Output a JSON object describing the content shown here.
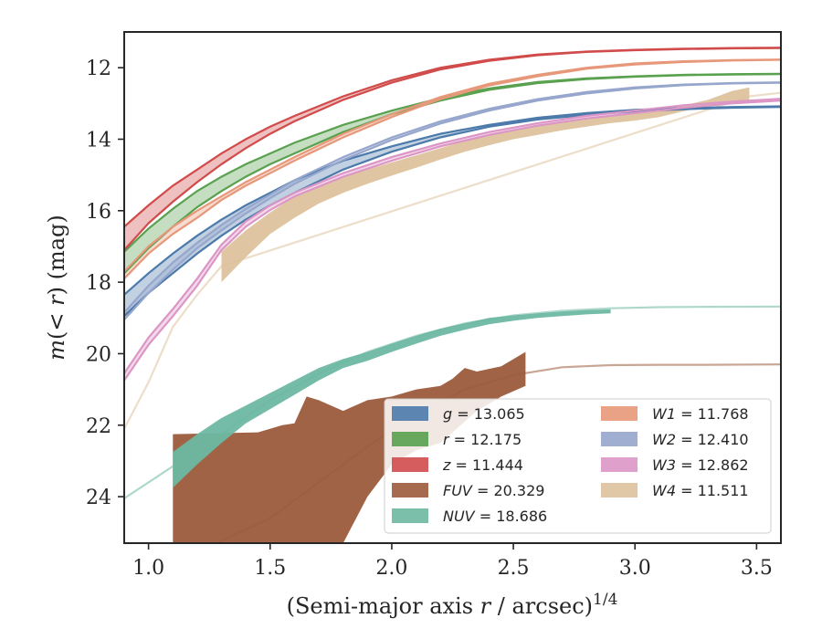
{
  "chart_data": {
    "type": "line",
    "xlabel": "(Semi-major axis r / arcsec)^1/4",
    "ylabel": "m(< r) (mag)",
    "xlim": [
      0.9,
      3.6
    ],
    "ylim": [
      25.3,
      11.0
    ],
    "y_inverted": true,
    "x_ticks": [
      "1.0",
      "1.5",
      "2.0",
      "2.5",
      "3.0",
      "3.5"
    ],
    "y_ticks": [
      "12",
      "14",
      "16",
      "18",
      "20",
      "22",
      "24"
    ],
    "grid": false,
    "legend_position": "lower right",
    "series": [
      {
        "name": "g",
        "legend_label": "g = 13.065",
        "color": "#4c7aab",
        "x": [
          0.9,
          1.0,
          1.1,
          1.2,
          1.3,
          1.4,
          1.5,
          1.6,
          1.8,
          2.0,
          2.2,
          2.4,
          2.6,
          2.8,
          3.0,
          3.2,
          3.4,
          3.6
        ],
        "y_upper": [
          18.35,
          17.75,
          17.2,
          16.7,
          16.25,
          15.85,
          15.5,
          15.15,
          14.6,
          14.2,
          13.85,
          13.6,
          13.4,
          13.27,
          13.18,
          13.13,
          13.1,
          13.08
        ],
        "y_lower": [
          18.95,
          18.3,
          17.75,
          17.2,
          16.7,
          16.25,
          15.85,
          15.5,
          14.85,
          14.35,
          13.95,
          13.65,
          13.45,
          13.32,
          13.22,
          13.16,
          13.12,
          13.1
        ]
      },
      {
        "name": "r",
        "legend_label": "r = 12.175",
        "color": "#59a14f",
        "x": [
          0.9,
          1.0,
          1.1,
          1.2,
          1.3,
          1.4,
          1.5,
          1.6,
          1.8,
          2.0,
          2.2,
          2.4,
          2.6,
          2.8,
          3.0,
          3.2,
          3.4,
          3.6
        ],
        "y_upper": [
          17.15,
          16.5,
          15.95,
          15.45,
          15.05,
          14.7,
          14.4,
          14.1,
          13.6,
          13.2,
          12.85,
          12.58,
          12.4,
          12.3,
          12.24,
          12.2,
          12.18,
          12.17
        ],
        "y_lower": [
          17.75,
          17.05,
          16.45,
          15.9,
          15.45,
          15.05,
          14.7,
          14.4,
          13.8,
          13.3,
          12.92,
          12.62,
          12.43,
          12.32,
          12.25,
          12.21,
          12.19,
          12.18
        ]
      },
      {
        "name": "z",
        "legend_label": "z = 11.444",
        "color": "#d14b4b",
        "x": [
          0.9,
          1.0,
          1.1,
          1.2,
          1.3,
          1.4,
          1.5,
          1.6,
          1.8,
          2.0,
          2.2,
          2.4,
          2.6,
          2.8,
          3.0,
          3.2,
          3.4,
          3.6
        ],
        "y_upper": [
          16.45,
          15.85,
          15.3,
          14.85,
          14.4,
          14.0,
          13.65,
          13.35,
          12.8,
          12.35,
          12.0,
          11.78,
          11.63,
          11.55,
          11.5,
          11.47,
          11.45,
          11.44
        ],
        "y_lower": [
          17.1,
          16.35,
          15.75,
          15.2,
          14.7,
          14.25,
          13.85,
          13.5,
          12.9,
          12.42,
          12.05,
          11.81,
          11.65,
          11.56,
          11.51,
          11.48,
          11.46,
          11.45
        ]
      },
      {
        "name": "FUV",
        "legend_label": "FUV = 20.329",
        "color": "#9c5b3c",
        "x": [
          1.1,
          1.45,
          1.55,
          1.6,
          1.65,
          1.7,
          1.8,
          1.9,
          2.0,
          2.1,
          2.2,
          2.25,
          2.3,
          2.35,
          2.45,
          2.55
        ],
        "y_upper": [
          22.25,
          22.2,
          22.0,
          21.95,
          21.2,
          21.3,
          21.6,
          21.3,
          21.2,
          21.0,
          20.9,
          20.7,
          20.4,
          20.5,
          20.35,
          19.95
        ],
        "y_lower": [
          25.3,
          25.3,
          25.3,
          25.3,
          25.3,
          25.3,
          25.3,
          24.0,
          23.1,
          22.7,
          22.5,
          22.2,
          21.9,
          21.6,
          21.2,
          20.9
        ],
        "curve_x": [
          1.28,
          1.5,
          1.7,
          1.9,
          2.1,
          2.3,
          2.5,
          2.7,
          2.9,
          3.1,
          3.3,
          3.6
        ],
        "curve_y": [
          25.3,
          24.6,
          23.6,
          22.6,
          21.7,
          21.0,
          20.6,
          20.38,
          20.32,
          20.31,
          20.31,
          20.3
        ]
      },
      {
        "name": "NUV",
        "legend_label": "NUV = 18.686",
        "color": "#6db8a2",
        "x": [
          1.1,
          1.2,
          1.3,
          1.4,
          1.5,
          1.6,
          1.7,
          1.8,
          1.9,
          2.0,
          2.1,
          2.2,
          2.3,
          2.4,
          2.5,
          2.6,
          2.7,
          2.8,
          2.9
        ],
        "y_upper": [
          22.75,
          22.25,
          21.8,
          21.45,
          21.1,
          20.75,
          20.4,
          20.15,
          19.95,
          19.72,
          19.5,
          19.3,
          19.15,
          19.0,
          18.93,
          18.87,
          18.82,
          18.78,
          18.76
        ],
        "y_lower": [
          23.75,
          23.1,
          22.5,
          21.95,
          21.55,
          21.15,
          20.75,
          20.4,
          20.2,
          19.95,
          19.72,
          19.5,
          19.33,
          19.18,
          19.08,
          19.0,
          18.95,
          18.9,
          18.87
        ],
        "curve_x": [
          0.9,
          1.0,
          1.1,
          1.2,
          1.3,
          1.5,
          1.7,
          1.9,
          2.1,
          2.3,
          2.5,
          2.7,
          2.9,
          3.1,
          3.3,
          3.6
        ],
        "curve_y": [
          24.05,
          23.6,
          23.15,
          22.7,
          22.25,
          21.3,
          20.55,
          19.95,
          19.5,
          19.15,
          18.93,
          18.8,
          18.73,
          18.7,
          18.69,
          18.68
        ]
      },
      {
        "name": "W1",
        "legend_label": "W1 = 11.768",
        "color": "#e8987a",
        "x": [
          0.9,
          1.0,
          1.1,
          1.2,
          1.3,
          1.4,
          1.5,
          1.6,
          1.8,
          2.0,
          2.2,
          2.4,
          2.6,
          2.8,
          3.0,
          3.2,
          3.4,
          3.6
        ],
        "y_upper": [
          17.7,
          17.0,
          16.45,
          16.0,
          15.6,
          15.2,
          14.85,
          14.5,
          13.85,
          13.3,
          12.82,
          12.45,
          12.2,
          12.0,
          11.88,
          11.82,
          11.79,
          11.77
        ],
        "y_lower": [
          17.9,
          17.2,
          16.65,
          16.2,
          15.7,
          15.3,
          14.95,
          14.6,
          13.95,
          13.38,
          12.88,
          12.5,
          12.24,
          12.03,
          11.91,
          11.84,
          11.8,
          11.78
        ]
      },
      {
        "name": "W2",
        "legend_label": "W2 = 12.410",
        "color": "#96a6cc",
        "x": [
          0.9,
          1.0,
          1.1,
          1.2,
          1.3,
          1.4,
          1.5,
          1.6,
          1.8,
          2.0,
          2.2,
          2.4,
          2.6,
          2.8,
          3.0,
          3.2,
          3.4,
          3.6
        ],
        "y_upper": [
          18.85,
          18.1,
          17.45,
          16.9,
          16.4,
          15.95,
          15.55,
          15.15,
          14.5,
          13.95,
          13.5,
          13.15,
          12.88,
          12.68,
          12.55,
          12.47,
          12.43,
          12.41
        ],
        "y_lower": [
          19.05,
          18.3,
          17.65,
          17.05,
          16.55,
          16.08,
          15.65,
          15.25,
          14.58,
          14.02,
          13.56,
          13.2,
          12.92,
          12.72,
          12.58,
          12.49,
          12.44,
          12.42
        ]
      },
      {
        "name": "W3",
        "legend_label": "W3 = 12.862",
        "color": "#dc96c6",
        "x": [
          0.9,
          1.0,
          1.1,
          1.2,
          1.3,
          1.4,
          1.5,
          1.6,
          1.8,
          2.0,
          2.2,
          2.4,
          2.6,
          2.8,
          3.0,
          3.2,
          3.4,
          3.6
        ],
        "y_upper": [
          20.55,
          19.55,
          18.75,
          17.9,
          16.95,
          16.3,
          15.85,
          15.5,
          14.95,
          14.5,
          14.12,
          13.8,
          13.55,
          13.35,
          13.2,
          13.05,
          12.95,
          12.87
        ],
        "y_lower": [
          20.75,
          19.75,
          18.95,
          18.1,
          17.1,
          16.45,
          15.98,
          15.6,
          15.05,
          14.6,
          14.2,
          13.88,
          13.62,
          13.42,
          13.27,
          13.12,
          13.0,
          12.92
        ]
      },
      {
        "name": "W4",
        "legend_label": "W4 = 11.511",
        "color": "#ddc29c",
        "x": [
          1.3,
          1.4,
          1.5,
          1.6,
          1.7,
          1.8,
          1.9,
          2.0,
          2.1,
          2.2,
          2.3,
          2.4,
          2.5,
          2.6,
          2.7,
          2.8,
          2.9,
          3.0,
          3.1,
          3.2,
          3.3,
          3.4,
          3.47
        ],
        "y_upper": [
          17.15,
          16.55,
          16.05,
          15.6,
          15.3,
          15.05,
          14.85,
          14.65,
          14.45,
          14.25,
          14.05,
          13.9,
          13.75,
          13.62,
          13.5,
          13.4,
          13.32,
          13.28,
          13.18,
          13.05,
          12.9,
          12.65,
          12.55
        ],
        "y_lower": [
          18.0,
          17.3,
          16.65,
          16.2,
          15.8,
          15.5,
          15.25,
          15.02,
          14.8,
          14.57,
          14.35,
          14.17,
          14.0,
          13.88,
          13.75,
          13.65,
          13.55,
          13.48,
          13.38,
          13.22,
          13.05,
          12.95,
          12.9
        ],
        "curve_x": [
          0.9,
          1.0,
          1.1,
          1.2,
          1.3,
          3.47,
          3.6
        ],
        "curve_y": [
          22.1,
          20.8,
          19.25,
          18.35,
          17.55,
          12.8,
          12.7
        ]
      }
    ]
  }
}
